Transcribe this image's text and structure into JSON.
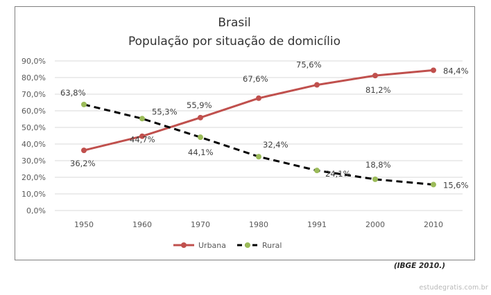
{
  "chart_data": {
    "type": "line",
    "title": "Brasil",
    "subtitle": "População por situação de domicílio",
    "categories": [
      "1950",
      "1960",
      "1970",
      "1980",
      "1991",
      "2000",
      "2010"
    ],
    "yticks": [
      "0,0%",
      "10,0%",
      "20,0%",
      "30,0%",
      "40,0%",
      "50,0%",
      "60,0%",
      "70,0%",
      "80,0%",
      "90,0%"
    ],
    "ylim": [
      0,
      90
    ],
    "grid": true,
    "legend_position": "bottom",
    "series": [
      {
        "name": "Urbana",
        "values": [
          36.2,
          44.7,
          55.9,
          67.6,
          75.6,
          81.2,
          84.4
        ],
        "labels": [
          "36,2%",
          "44,7%",
          "55,9%",
          "67,6%",
          "75,6%",
          "81,2%",
          "84,4%"
        ],
        "color": "#c0504d",
        "line_style": "solid"
      },
      {
        "name": "Rural",
        "values": [
          63.8,
          55.3,
          44.1,
          32.4,
          24.1,
          18.8,
          15.6
        ],
        "labels": [
          "63,8%",
          "55,3%",
          "44,1%",
          "32,4%",
          "24,1%",
          "18,8%",
          "15,6%"
        ],
        "color": "#000000",
        "marker_color": "#9bbb59",
        "line_style": "dashed"
      }
    ]
  },
  "source_note": "(IBGE 2010.)",
  "watermark": "estudegratis.com.br"
}
